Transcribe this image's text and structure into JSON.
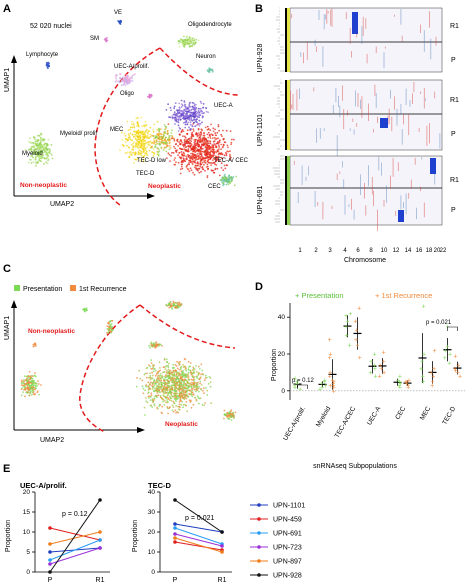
{
  "panelA": {
    "letter": "A",
    "nuclei_count": "52 020 nuclei",
    "axis_x": "UMAP2",
    "axis_y": "UMAP1",
    "group_nonneoplastic": "Non-neoplastic",
    "group_neoplastic": "Neoplastic",
    "clusters": [
      "VE",
      "SM",
      "Oligodendrocyte",
      "Neuron",
      "Lymphocyte",
      "UEC-A/prolif.",
      "Oligo",
      "UEC-A",
      "MEC",
      "TEC-D low",
      "TEC-A/ CEC",
      "TEC-D",
      "CEC",
      "Myeloid/ prolif",
      "Myeloid"
    ],
    "colors": {
      "neoplastic_red": "#e31a1c",
      "myeloid_green": "#8fd14f",
      "mec_yellow": "#f0d000",
      "cec_green": "#66c2a4",
      "purple": "#7b5ad6",
      "orange": "#f5a623"
    }
  },
  "panelB": {
    "letter": "B",
    "samples": [
      "UPN-928",
      "UPN-1101",
      "UPN-691"
    ],
    "row_labels": [
      "R1",
      "P"
    ],
    "xlabel": "Chromosome",
    "chromosomes": [
      "1",
      "2",
      "3",
      "4",
      "6",
      "8",
      "10",
      "12",
      "14",
      "16",
      "18",
      "20",
      "22"
    ]
  },
  "panelC": {
    "letter": "C",
    "legend": [
      "Presentation",
      "1st Recurrence"
    ],
    "legend_colors": [
      "#7ed957",
      "#f08a3c"
    ],
    "group_nonneoplastic": "Non-neoplastic",
    "group_neoplastic": "Neoplastic",
    "axis_x": "UMAP2",
    "axis_y": "UMAP1"
  },
  "panelD": {
    "letter": "D",
    "legend": [
      "+ Presentation",
      "+ 1st Recurrence"
    ],
    "ylabel": "Proportion",
    "xlabel": "snRNAseq Subpopulations",
    "pvalues": [
      "p = 0.12",
      "p = 0.021"
    ]
  },
  "panelE": {
    "letter": "E",
    "left_title": "UEC-A/prolif.",
    "right_title": "TEC-D",
    "left_p": "p = 0.12",
    "right_p": "p = 0.021",
    "ylabel": "Proportion",
    "x_categories": [
      "P",
      "R1"
    ],
    "legend": [
      "UPN-1101",
      "UPN-459",
      "UPN-691",
      "UPN-723",
      "UPN-897",
      "UPN-928"
    ],
    "legend_colors": [
      "#1f3fbf",
      "#e02020",
      "#2a9df4",
      "#9b30d9",
      "#f07c1a",
      "#111111"
    ]
  },
  "chart_data": [
    {
      "type": "scatter",
      "title": "",
      "xlabel": "snRNAseq Subpopulations",
      "ylabel": "Proportion",
      "ylim": [
        -5,
        45
      ],
      "categories": [
        "UEC-A/prolif.",
        "Myeloid",
        "TEC-A/CEC",
        "UEC-A",
        "CEC",
        "MEC",
        "TEC-D"
      ],
      "series": [
        {
          "name": "Presentation",
          "color": "#7ed957",
          "points": [
            [
              0,
              3
            ],
            [
              0,
              5
            ],
            [
              0,
              1
            ],
            [
              0,
              2
            ],
            [
              0,
              4
            ],
            [
              0,
              7
            ],
            [
              1,
              6
            ],
            [
              1,
              4
            ],
            [
              1,
              3
            ],
            [
              1,
              2
            ],
            [
              1,
              5
            ],
            [
              1,
              1
            ],
            [
              2,
              41
            ],
            [
              2,
              38
            ],
            [
              2,
              30
            ],
            [
              2,
              25
            ],
            [
              2,
              42
            ],
            [
              2,
              35
            ],
            [
              3,
              16
            ],
            [
              3,
              12
            ],
            [
              3,
              8
            ],
            [
              3,
              20
            ],
            [
              3,
              10
            ],
            [
              3,
              14
            ],
            [
              4,
              5
            ],
            [
              4,
              4
            ],
            [
              4,
              3
            ],
            [
              4,
              8
            ],
            [
              4,
              6
            ],
            [
              4,
              2
            ],
            [
              5,
              46
            ],
            [
              5,
              5
            ],
            [
              5,
              12
            ],
            [
              5,
              8
            ],
            [
              5,
              16
            ],
            [
              5,
              20
            ],
            [
              6,
              35
            ],
            [
              6,
              20
            ],
            [
              6,
              15
            ],
            [
              6,
              24
            ],
            [
              6,
              18
            ],
            [
              6,
              22
            ]
          ]
        },
        {
          "name": "1st Recurrence",
          "color": "#f08a3c",
          "points": [
            [
              1,
              4
            ],
            [
              1,
              2
            ],
            [
              1,
              3
            ],
            [
              1,
              6
            ],
            [
              1,
              8
            ],
            [
              1,
              18
            ],
            [
              1,
              28
            ],
            [
              1,
              20
            ],
            [
              1,
              0
            ],
            [
              1,
              5
            ],
            [
              1,
              3
            ],
            [
              1,
              10
            ],
            [
              2,
              45
            ],
            [
              2,
              38
            ],
            [
              2,
              33
            ],
            [
              2,
              28
            ],
            [
              2,
              18
            ],
            [
              2,
              25
            ],
            [
              3,
              21
            ],
            [
              3,
              14
            ],
            [
              3,
              10
            ],
            [
              3,
              8
            ],
            [
              3,
              12
            ],
            [
              3,
              16
            ],
            [
              4,
              5
            ],
            [
              4,
              4
            ],
            [
              4,
              3
            ],
            [
              4,
              6
            ],
            [
              4,
              2
            ],
            [
              4,
              5
            ],
            [
              5,
              22
            ],
            [
              5,
              10
            ],
            [
              5,
              8
            ],
            [
              5,
              3
            ],
            [
              5,
              12
            ],
            [
              5,
              5
            ],
            [
              6,
              19
            ],
            [
              6,
              12
            ],
            [
              6,
              10
            ],
            [
              6,
              14
            ],
            [
              6,
              8
            ],
            [
              6,
              11
            ]
          ]
        }
      ],
      "annotations": [
        "p = 0.12",
        "p = 0.021"
      ]
    },
    {
      "type": "line",
      "title": "UEC-A/prolif.",
      "ylabel": "Proportion",
      "categories": [
        "P",
        "R1"
      ],
      "ylim": [
        0,
        20
      ],
      "series": [
        {
          "name": "UPN-1101",
          "values": [
            5,
            6
          ]
        },
        {
          "name": "UPN-459",
          "values": [
            11,
            8
          ]
        },
        {
          "name": "UPN-691",
          "values": [
            3,
            8
          ]
        },
        {
          "name": "UPN-723",
          "values": [
            2,
            6
          ]
        },
        {
          "name": "UPN-897",
          "values": [
            7,
            10
          ]
        },
        {
          "name": "UPN-928",
          "values": [
            0,
            18
          ]
        }
      ]
    },
    {
      "type": "line",
      "title": "TEC-D",
      "ylabel": "Proportion",
      "categories": [
        "P",
        "R1"
      ],
      "ylim": [
        0,
        40
      ],
      "series": [
        {
          "name": "UPN-1101",
          "values": [
            24,
            20
          ]
        },
        {
          "name": "UPN-459",
          "values": [
            15,
            11
          ]
        },
        {
          "name": "UPN-691",
          "values": [
            22,
            14
          ]
        },
        {
          "name": "UPN-723",
          "values": [
            19,
            13
          ]
        },
        {
          "name": "UPN-897",
          "values": [
            17,
            10
          ]
        },
        {
          "name": "UPN-928",
          "values": [
            36,
            20
          ]
        }
      ]
    }
  ]
}
